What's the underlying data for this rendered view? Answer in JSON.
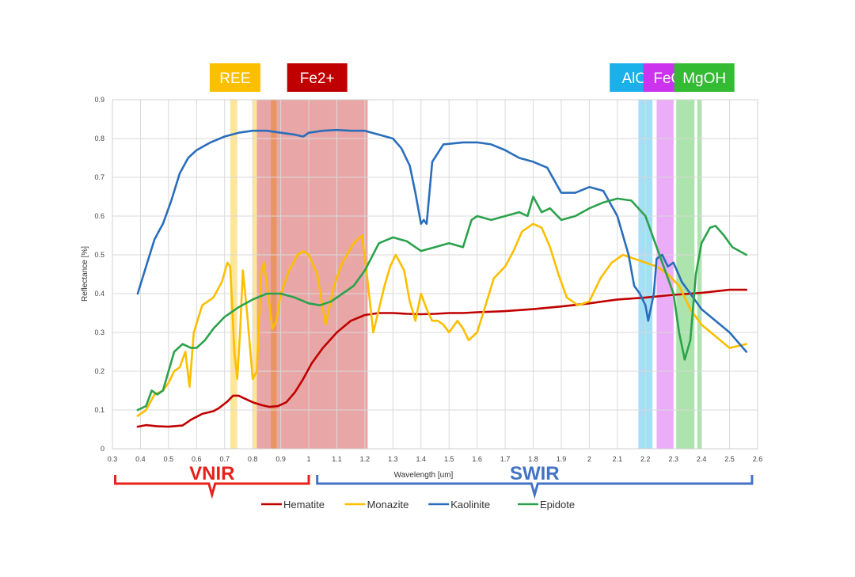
{
  "chart_data": {
    "type": "line",
    "xlabel": "Wavelength [um]",
    "ylabel": "Reflectance [%]",
    "xlim": [
      0.3,
      2.6
    ],
    "ylim": [
      0,
      0.9
    ],
    "xticks": [
      "0.3",
      "0.4",
      "0.5",
      "0.6",
      "0.7",
      "0.8",
      "0.9",
      "1",
      "1.1",
      "1.2",
      "1.3",
      "1.4",
      "1.5",
      "1.6",
      "1.7",
      "1.8",
      "1.9",
      "2",
      "2.1",
      "2.2",
      "2.3",
      "2.4",
      "2.5",
      "2.6"
    ],
    "yticks": [
      "0",
      "0.1",
      "0.2",
      "0.3",
      "0.4",
      "0.5",
      "0.6",
      "0.7",
      "0.8",
      "0.9"
    ],
    "grid": true,
    "legend_position": "bottom",
    "bands": [
      {
        "label": "REE",
        "color": "#fbbf00",
        "ranges": [
          [
            0.72,
            0.745
          ],
          [
            0.8,
            0.815
          ],
          [
            0.865,
            0.885
          ]
        ],
        "badge_x": 0.737
      },
      {
        "label": "Fe2+",
        "color": "#c00000",
        "ranges": [
          [
            0.815,
            1.21
          ]
        ],
        "badge_x": 1.03
      },
      {
        "label": "AlOH",
        "color": "#1ab0ea",
        "ranges": [
          [
            2.175,
            2.225
          ]
        ],
        "badge_x": 2.18
      },
      {
        "label": "FeOH",
        "color": "#cc33ee",
        "ranges": [
          [
            2.24,
            2.3
          ]
        ],
        "badge_x": 2.3
      },
      {
        "label": "MgOH",
        "color": "#33bb33",
        "ranges": [
          [
            2.31,
            2.375
          ],
          [
            2.385,
            2.4
          ]
        ],
        "badge_x": 2.41
      }
    ],
    "regions": [
      {
        "label": "VNIR",
        "color": "#e8201a",
        "range": [
          0.31,
          1.0
        ]
      },
      {
        "label": "SWIR",
        "color": "#4472c4",
        "range": [
          1.03,
          2.58
        ]
      }
    ],
    "series": [
      {
        "name": "Hematite",
        "color": "#c00000",
        "points": [
          [
            0.39,
            0.057
          ],
          [
            0.42,
            0.061
          ],
          [
            0.46,
            0.058
          ],
          [
            0.5,
            0.057
          ],
          [
            0.55,
            0.06
          ],
          [
            0.58,
            0.075
          ],
          [
            0.62,
            0.09
          ],
          [
            0.66,
            0.097
          ],
          [
            0.68,
            0.105
          ],
          [
            0.71,
            0.122
          ],
          [
            0.73,
            0.137
          ],
          [
            0.75,
            0.137
          ],
          [
            0.77,
            0.13
          ],
          [
            0.8,
            0.12
          ],
          [
            0.83,
            0.113
          ],
          [
            0.86,
            0.108
          ],
          [
            0.89,
            0.11
          ],
          [
            0.92,
            0.12
          ],
          [
            0.95,
            0.145
          ],
          [
            0.98,
            0.18
          ],
          [
            1.01,
            0.22
          ],
          [
            1.05,
            0.26
          ],
          [
            1.1,
            0.3
          ],
          [
            1.15,
            0.33
          ],
          [
            1.2,
            0.345
          ],
          [
            1.25,
            0.35
          ],
          [
            1.3,
            0.35
          ],
          [
            1.35,
            0.348
          ],
          [
            1.4,
            0.347
          ],
          [
            1.45,
            0.348
          ],
          [
            1.5,
            0.35
          ],
          [
            1.55,
            0.35
          ],
          [
            1.6,
            0.352
          ],
          [
            1.7,
            0.355
          ],
          [
            1.8,
            0.36
          ],
          [
            1.9,
            0.367
          ],
          [
            2.0,
            0.375
          ],
          [
            2.1,
            0.385
          ],
          [
            2.2,
            0.39
          ],
          [
            2.3,
            0.397
          ],
          [
            2.4,
            0.402
          ],
          [
            2.5,
            0.41
          ],
          [
            2.56,
            0.41
          ]
        ]
      },
      {
        "name": "Monazite",
        "color": "#fbbf00",
        "points": [
          [
            0.39,
            0.085
          ],
          [
            0.42,
            0.1
          ],
          [
            0.45,
            0.14
          ],
          [
            0.48,
            0.15
          ],
          [
            0.5,
            0.17
          ],
          [
            0.52,
            0.2
          ],
          [
            0.54,
            0.21
          ],
          [
            0.56,
            0.25
          ],
          [
            0.575,
            0.16
          ],
          [
            0.59,
            0.3
          ],
          [
            0.62,
            0.37
          ],
          [
            0.66,
            0.39
          ],
          [
            0.69,
            0.43
          ],
          [
            0.71,
            0.48
          ],
          [
            0.72,
            0.47
          ],
          [
            0.735,
            0.25
          ],
          [
            0.745,
            0.18
          ],
          [
            0.755,
            0.3
          ],
          [
            0.765,
            0.46
          ],
          [
            0.78,
            0.35
          ],
          [
            0.8,
            0.18
          ],
          [
            0.815,
            0.2
          ],
          [
            0.83,
            0.45
          ],
          [
            0.84,
            0.48
          ],
          [
            0.855,
            0.4
          ],
          [
            0.87,
            0.31
          ],
          [
            0.885,
            0.33
          ],
          [
            0.9,
            0.4
          ],
          [
            0.93,
            0.46
          ],
          [
            0.96,
            0.5
          ],
          [
            0.98,
            0.51
          ],
          [
            1.0,
            0.5
          ],
          [
            1.03,
            0.45
          ],
          [
            1.06,
            0.32
          ],
          [
            1.09,
            0.42
          ],
          [
            1.12,
            0.48
          ],
          [
            1.16,
            0.53
          ],
          [
            1.19,
            0.55
          ],
          [
            1.21,
            0.43
          ],
          [
            1.23,
            0.3
          ],
          [
            1.25,
            0.36
          ],
          [
            1.27,
            0.42
          ],
          [
            1.29,
            0.47
          ],
          [
            1.31,
            0.5
          ],
          [
            1.34,
            0.46
          ],
          [
            1.36,
            0.38
          ],
          [
            1.38,
            0.33
          ],
          [
            1.4,
            0.4
          ],
          [
            1.42,
            0.36
          ],
          [
            1.44,
            0.33
          ],
          [
            1.46,
            0.33
          ],
          [
            1.48,
            0.32
          ],
          [
            1.5,
            0.3
          ],
          [
            1.53,
            0.33
          ],
          [
            1.55,
            0.31
          ],
          [
            1.57,
            0.28
          ],
          [
            1.6,
            0.3
          ],
          [
            1.63,
            0.37
          ],
          [
            1.66,
            0.44
          ],
          [
            1.7,
            0.47
          ],
          [
            1.73,
            0.51
          ],
          [
            1.76,
            0.56
          ],
          [
            1.8,
            0.58
          ],
          [
            1.83,
            0.57
          ],
          [
            1.86,
            0.52
          ],
          [
            1.89,
            0.45
          ],
          [
            1.92,
            0.39
          ],
          [
            1.96,
            0.37
          ],
          [
            2.0,
            0.38
          ],
          [
            2.04,
            0.44
          ],
          [
            2.08,
            0.48
          ],
          [
            2.12,
            0.5
          ],
          [
            2.16,
            0.49
          ],
          [
            2.2,
            0.48
          ],
          [
            2.24,
            0.47
          ],
          [
            2.28,
            0.45
          ],
          [
            2.32,
            0.42
          ],
          [
            2.36,
            0.36
          ],
          [
            2.4,
            0.32
          ],
          [
            2.45,
            0.29
          ],
          [
            2.5,
            0.26
          ],
          [
            2.56,
            0.27
          ]
        ]
      },
      {
        "name": "Kaolinite",
        "color": "#2a6ebb",
        "points": [
          [
            0.39,
            0.4
          ],
          [
            0.42,
            0.47
          ],
          [
            0.45,
            0.54
          ],
          [
            0.48,
            0.58
          ],
          [
            0.51,
            0.64
          ],
          [
            0.54,
            0.71
          ],
          [
            0.57,
            0.75
          ],
          [
            0.6,
            0.77
          ],
          [
            0.65,
            0.79
          ],
          [
            0.7,
            0.805
          ],
          [
            0.75,
            0.815
          ],
          [
            0.8,
            0.82
          ],
          [
            0.85,
            0.82
          ],
          [
            0.9,
            0.815
          ],
          [
            0.95,
            0.81
          ],
          [
            0.98,
            0.805
          ],
          [
            1.0,
            0.815
          ],
          [
            1.05,
            0.82
          ],
          [
            1.1,
            0.822
          ],
          [
            1.15,
            0.82
          ],
          [
            1.2,
            0.82
          ],
          [
            1.25,
            0.81
          ],
          [
            1.3,
            0.8
          ],
          [
            1.33,
            0.775
          ],
          [
            1.36,
            0.73
          ],
          [
            1.38,
            0.66
          ],
          [
            1.4,
            0.58
          ],
          [
            1.41,
            0.59
          ],
          [
            1.42,
            0.58
          ],
          [
            1.44,
            0.74
          ],
          [
            1.48,
            0.785
          ],
          [
            1.55,
            0.79
          ],
          [
            1.6,
            0.79
          ],
          [
            1.65,
            0.785
          ],
          [
            1.7,
            0.77
          ],
          [
            1.75,
            0.75
          ],
          [
            1.8,
            0.74
          ],
          [
            1.85,
            0.725
          ],
          [
            1.9,
            0.66
          ],
          [
            1.95,
            0.66
          ],
          [
            2.0,
            0.675
          ],
          [
            2.05,
            0.665
          ],
          [
            2.1,
            0.6
          ],
          [
            2.14,
            0.5
          ],
          [
            2.16,
            0.42
          ],
          [
            2.18,
            0.4
          ],
          [
            2.2,
            0.37
          ],
          [
            2.21,
            0.33
          ],
          [
            2.23,
            0.4
          ],
          [
            2.24,
            0.49
          ],
          [
            2.26,
            0.5
          ],
          [
            2.28,
            0.47
          ],
          [
            2.3,
            0.48
          ],
          [
            2.33,
            0.43
          ],
          [
            2.36,
            0.4
          ],
          [
            2.4,
            0.36
          ],
          [
            2.45,
            0.33
          ],
          [
            2.5,
            0.3
          ],
          [
            2.56,
            0.25
          ]
        ]
      },
      {
        "name": "Epidote",
        "color": "#2ba24c",
        "points": [
          [
            0.39,
            0.1
          ],
          [
            0.42,
            0.11
          ],
          [
            0.44,
            0.15
          ],
          [
            0.46,
            0.14
          ],
          [
            0.48,
            0.15
          ],
          [
            0.5,
            0.2
          ],
          [
            0.52,
            0.25
          ],
          [
            0.55,
            0.27
          ],
          [
            0.58,
            0.26
          ],
          [
            0.6,
            0.26
          ],
          [
            0.63,
            0.28
          ],
          [
            0.66,
            0.31
          ],
          [
            0.7,
            0.34
          ],
          [
            0.75,
            0.365
          ],
          [
            0.8,
            0.385
          ],
          [
            0.85,
            0.4
          ],
          [
            0.9,
            0.4
          ],
          [
            0.95,
            0.39
          ],
          [
            1.0,
            0.375
          ],
          [
            1.04,
            0.37
          ],
          [
            1.08,
            0.38
          ],
          [
            1.12,
            0.4
          ],
          [
            1.16,
            0.42
          ],
          [
            1.2,
            0.46
          ],
          [
            1.25,
            0.53
          ],
          [
            1.3,
            0.545
          ],
          [
            1.35,
            0.535
          ],
          [
            1.4,
            0.51
          ],
          [
            1.45,
            0.52
          ],
          [
            1.5,
            0.53
          ],
          [
            1.55,
            0.52
          ],
          [
            1.58,
            0.59
          ],
          [
            1.6,
            0.6
          ],
          [
            1.65,
            0.59
          ],
          [
            1.7,
            0.6
          ],
          [
            1.75,
            0.61
          ],
          [
            1.78,
            0.6
          ],
          [
            1.8,
            0.65
          ],
          [
            1.83,
            0.61
          ],
          [
            1.86,
            0.62
          ],
          [
            1.9,
            0.59
          ],
          [
            1.95,
            0.6
          ],
          [
            2.0,
            0.62
          ],
          [
            2.05,
            0.635
          ],
          [
            2.1,
            0.645
          ],
          [
            2.15,
            0.64
          ],
          [
            2.2,
            0.6
          ],
          [
            2.25,
            0.5
          ],
          [
            2.3,
            0.4
          ],
          [
            2.32,
            0.3
          ],
          [
            2.34,
            0.23
          ],
          [
            2.36,
            0.28
          ],
          [
            2.38,
            0.45
          ],
          [
            2.4,
            0.53
          ],
          [
            2.43,
            0.57
          ],
          [
            2.45,
            0.575
          ],
          [
            2.48,
            0.55
          ],
          [
            2.51,
            0.52
          ],
          [
            2.56,
            0.5
          ]
        ]
      }
    ]
  }
}
